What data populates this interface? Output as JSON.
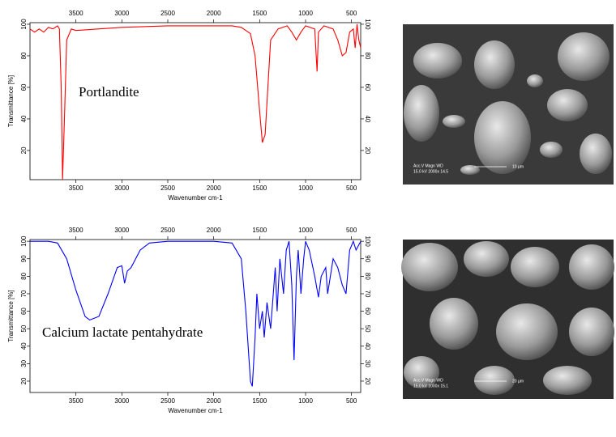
{
  "chart_data": [
    {
      "type": "line",
      "annotation": "Portlandite",
      "xlabel": "Wavenumber cm-1",
      "ylabel": "Transmittance [%]",
      "x": [
        4000,
        3950,
        3900,
        3850,
        3800,
        3750,
        3700,
        3680,
        3660,
        3645,
        3625,
        3600,
        3550,
        3500,
        3000,
        2500,
        2000,
        1800,
        1700,
        1600,
        1550,
        1500,
        1470,
        1440,
        1410,
        1380,
        1300,
        1200,
        1150,
        1100,
        1050,
        1000,
        900,
        875,
        860,
        800,
        700,
        650,
        600,
        560,
        520,
        480,
        460,
        440,
        420,
        400
      ],
      "series": [
        {
          "color": "#ff0000",
          "values": [
            97,
            95,
            97,
            95,
            98,
            97,
            99,
            97,
            60,
            1.5,
            40,
            90,
            97,
            96,
            98,
            99,
            99,
            99,
            98,
            94,
            80,
            45,
            25,
            30,
            60,
            90,
            97,
            99,
            95,
            90,
            95,
            99,
            97,
            70,
            95,
            99,
            97,
            90,
            80,
            82,
            95,
            97,
            85,
            100,
            90,
            85
          ]
        }
      ],
      "xlim": [
        4000,
        400
      ],
      "xticks": [
        3500,
        3000,
        2500,
        2000,
        1500,
        1000,
        500
      ],
      "ylim": [
        1.5,
        101
      ],
      "yticks": [
        20,
        40,
        60,
        80,
        100
      ]
    },
    {
      "type": "line",
      "annotation": "Calcium lactate pentahydrate",
      "xlabel": "Wavenumber cm-1",
      "ylabel": "Transmittance [%]",
      "x": [
        4000,
        3800,
        3700,
        3600,
        3500,
        3400,
        3350,
        3250,
        3150,
        3050,
        3000,
        2970,
        2940,
        2900,
        2800,
        2700,
        2500,
        2000,
        1800,
        1700,
        1650,
        1600,
        1580,
        1550,
        1530,
        1500,
        1470,
        1450,
        1420,
        1380,
        1330,
        1310,
        1280,
        1240,
        1210,
        1180,
        1150,
        1125,
        1100,
        1080,
        1050,
        1020,
        1000,
        960,
        900,
        860,
        830,
        780,
        760,
        700,
        650,
        600,
        560,
        520,
        480,
        450,
        400
      ],
      "series": [
        {
          "color": "#0000ff",
          "values": [
            100,
            100,
            99,
            90,
            72,
            57,
            55,
            57,
            70,
            85,
            86,
            76,
            83,
            85,
            95,
            99,
            100,
            100,
            99,
            90,
            60,
            20,
            17,
            45,
            70,
            50,
            60,
            45,
            65,
            50,
            85,
            60,
            90,
            70,
            95,
            100,
            75,
            32,
            80,
            95,
            70,
            90,
            100,
            95,
            80,
            68,
            80,
            85,
            70,
            90,
            85,
            75,
            70,
            95,
            100,
            95,
            100
          ]
        }
      ],
      "xlim": [
        4000,
        400
      ],
      "xticks": [
        3500,
        3000,
        2500,
        2000,
        1500,
        1000,
        500
      ],
      "ylim": [
        13.5,
        101
      ],
      "yticks": [
        20,
        30,
        40,
        50,
        60,
        70,
        80,
        90,
        100
      ]
    }
  ],
  "images": [
    {
      "header": "Acc.V   Magn    WD",
      "info": "15.0 kV  2000x   14.5",
      "scale": "10 µm"
    },
    {
      "header": "Acc.V   Magn    WD",
      "info": "15.0 kV  1000x   15.1",
      "scale": "20 µm"
    }
  ]
}
